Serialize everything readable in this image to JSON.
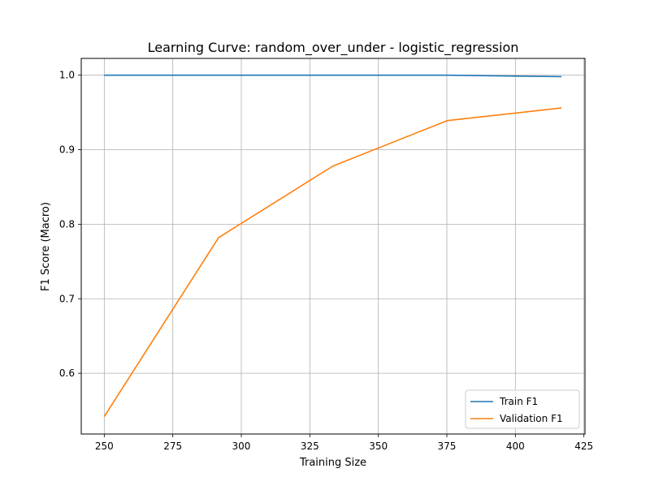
{
  "chart_data": {
    "type": "line",
    "title": "Learning Curve: random_over_under - logistic_regression",
    "xlabel": "Training Size",
    "ylabel": "F1 Score (Macro)",
    "xlim": [
      241.6,
      425.4
    ],
    "ylim": [
      0.5185,
      1.0225
    ],
    "xticks": [
      250,
      275,
      300,
      325,
      350,
      375,
      400,
      425
    ],
    "xtick_labels": [
      "250",
      "275",
      "300",
      "325",
      "350",
      "375",
      "400",
      "425"
    ],
    "yticks": [
      0.6,
      0.7,
      0.8,
      0.9,
      1.0
    ],
    "ytick_labels": [
      "0.6",
      "0.7",
      "0.8",
      "0.9",
      "1.0"
    ],
    "grid": true,
    "legend_position": "bottom-right",
    "x": [
      250,
      291.7,
      333.4,
      375.1,
      416.8
    ],
    "series": [
      {
        "name": "Train F1",
        "color": "#1f77b4",
        "values": [
          1.0,
          1.0,
          1.0,
          1.0,
          0.998
        ]
      },
      {
        "name": "Validation F1",
        "color": "#ff7f0e",
        "values": [
          0.542,
          0.782,
          0.878,
          0.939,
          0.956
        ]
      }
    ]
  }
}
